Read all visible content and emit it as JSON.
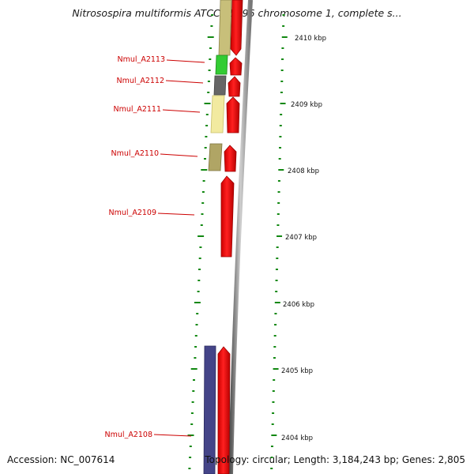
{
  "title": "Nitrosospira multiformis ATCC 25196 chromosome 1, complete s...",
  "footer": {
    "accession": "Accession: NC_007614",
    "topology": "Topology: circular; Length: 3,184,243 bp; Genes: 2,805"
  },
  "colors": {
    "cds_forward": "#ee1111",
    "gene_label": "#cc0000",
    "tick": "#118811",
    "backbone": "#888888",
    "cog_olive": "#c8bf7a",
    "cog_green": "#33cc33",
    "cog_gray": "#666666",
    "cog_paleyellow": "#f2eaa0",
    "cog_darkolive": "#b0a565",
    "cog_navy": "#444488"
  },
  "scale_labels": [
    "2410 kbp",
    "2409 kbp",
    "2408 kbp",
    "2407 kbp",
    "2406 kbp",
    "2405 kbp",
    "2404 kbp"
  ],
  "genes": [
    {
      "name": "Nmul_A2113",
      "cog_color": "#33cc33",
      "icon": "arrow-up"
    },
    {
      "name": "Nmul_A2112",
      "cog_color": "#666666",
      "icon": "arrow-up"
    },
    {
      "name": "Nmul_A2111",
      "cog_color": "#f2eaa0",
      "icon": "arrow-up"
    },
    {
      "name": "Nmul_A2110",
      "cog_color": "#b0a565",
      "icon": "arrow-up"
    },
    {
      "name": "Nmul_A2109",
      "cog_color": "",
      "icon": "arrow-up"
    },
    {
      "name": "Nmul_A2108",
      "cog_color": "#444488",
      "icon": "arrow-up"
    }
  ]
}
